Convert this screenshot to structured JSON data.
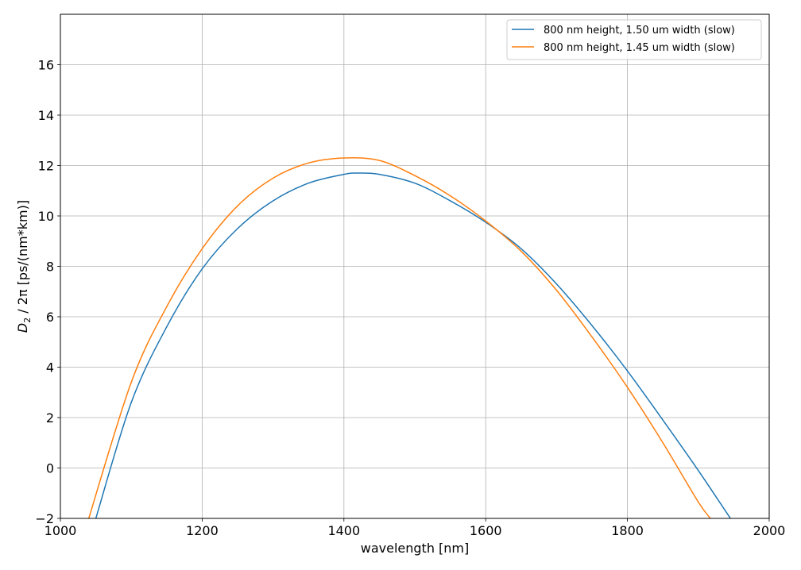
{
  "chart_data": {
    "type": "line",
    "xlabel": "wavelength [nm]",
    "ylabel_main": "D",
    "ylabel_sub": "2",
    "ylabel_rest": " / 2π [ps/(nm*km)]",
    "xlim": [
      1000,
      2000
    ],
    "ylim": [
      -2,
      18
    ],
    "xticks": [
      1000,
      1200,
      1400,
      1600,
      1800,
      2000
    ],
    "yticks": [
      -2,
      0,
      2,
      4,
      6,
      8,
      10,
      12,
      14,
      16
    ],
    "grid": true,
    "legend_position": "top-right",
    "series": [
      {
        "name": "800 nm height, 1.50 um width (slow)",
        "color": "#1f77b4",
        "x": [
          1050,
          1100,
          1150,
          1200,
          1250,
          1300,
          1350,
          1400,
          1420,
          1450,
          1500,
          1550,
          1600,
          1650,
          1700,
          1750,
          1800,
          1850,
          1900,
          1950
        ],
        "y": [
          -2.0,
          2.6,
          5.6,
          7.9,
          9.5,
          10.6,
          11.3,
          11.65,
          11.7,
          11.65,
          11.3,
          10.6,
          9.75,
          8.7,
          7.3,
          5.65,
          3.85,
          1.9,
          -0.1,
          -2.2
        ]
      },
      {
        "name": "800 nm height, 1.45 um width (slow)",
        "color": "#ff7f0e",
        "x": [
          1040,
          1100,
          1150,
          1200,
          1250,
          1300,
          1350,
          1400,
          1450,
          1500,
          1550,
          1600,
          1650,
          1700,
          1750,
          1800,
          1850,
          1900,
          1920
        ],
        "y": [
          -2.0,
          3.4,
          6.4,
          8.7,
          10.4,
          11.5,
          12.1,
          12.3,
          12.2,
          11.6,
          10.8,
          9.8,
          8.6,
          7.05,
          5.2,
          3.2,
          1.0,
          -1.35,
          -2.1
        ]
      }
    ]
  }
}
